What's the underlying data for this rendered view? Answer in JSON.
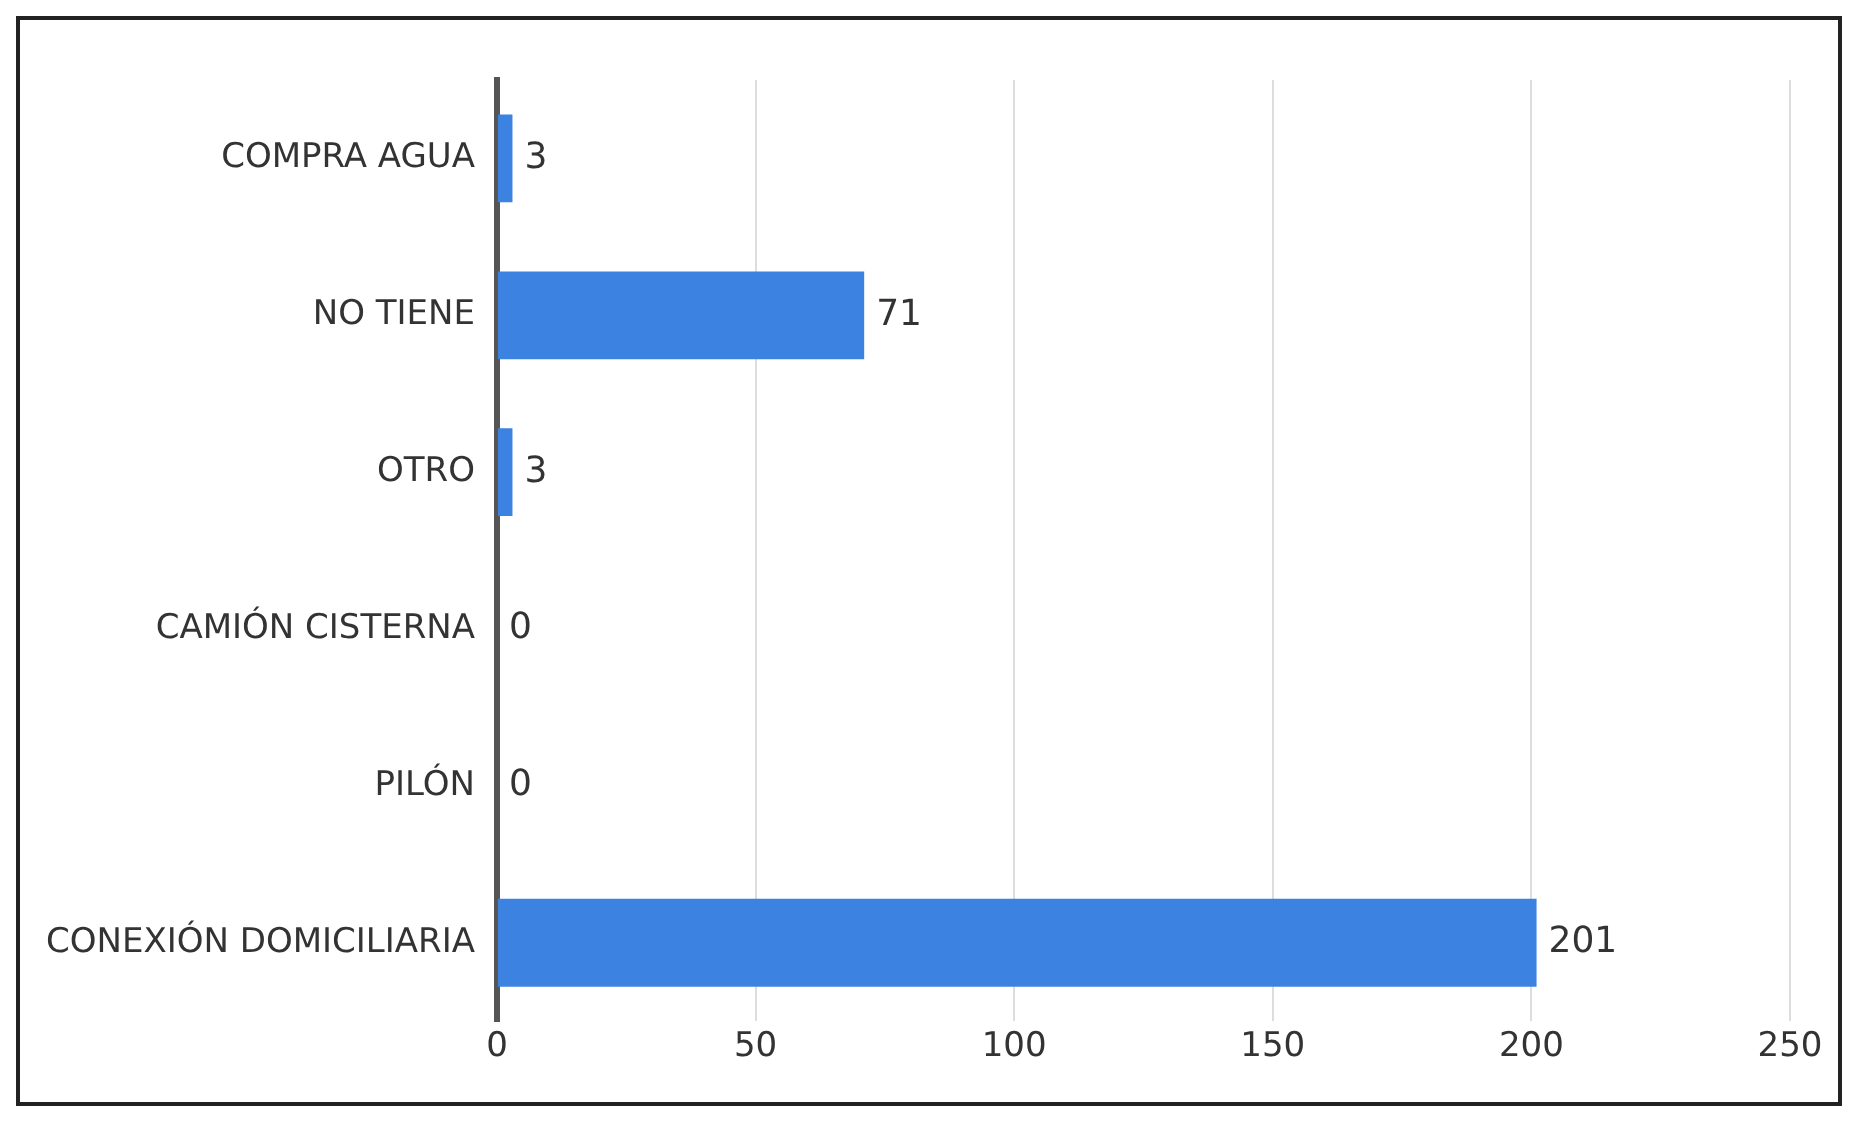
{
  "chart_data": {
    "type": "bar",
    "orientation": "horizontal",
    "categories": [
      "COMPRA AGUA",
      "NO TIENE",
      "OTRO",
      "CAMIÓN CISTERNA",
      "PILÓN",
      "CONEXIÓN DOMICILIARIA"
    ],
    "values": [
      3,
      71,
      3,
      0,
      0,
      201
    ],
    "color": "#3c82e0",
    "xlim": [
      0,
      250
    ],
    "xticks": [
      0,
      50,
      100,
      150,
      200,
      250
    ],
    "grid": "x",
    "data_labels": true
  }
}
